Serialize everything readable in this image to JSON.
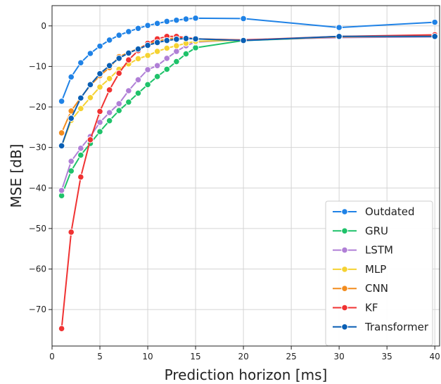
{
  "chart_data": {
    "type": "line",
    "title": "",
    "xlabel": "Prediction horizon [ms]",
    "ylabel": "MSE [dB]",
    "xlim": [
      0,
      40.5
    ],
    "ylim": [
      -79,
      5
    ],
    "xticks": [
      0,
      5,
      10,
      15,
      20,
      25,
      30,
      35,
      40
    ],
    "yticks": [
      0,
      -10,
      -20,
      -30,
      -40,
      -50,
      -60,
      -70
    ],
    "grid": true,
    "legend_position": "lower-right",
    "series": [
      {
        "name": "Outdated",
        "color": "#1f82e6",
        "x": [
          1,
          2,
          3,
          4,
          5,
          6,
          7,
          8,
          9,
          10,
          11,
          12,
          13,
          14,
          15,
          20,
          30,
          40
        ],
        "y": [
          -18.6,
          -12.6,
          -9.1,
          -6.8,
          -5.0,
          -3.5,
          -2.3,
          -1.4,
          -0.6,
          0.1,
          0.6,
          1.1,
          1.4,
          1.7,
          1.9,
          1.8,
          -0.4,
          0.9
        ]
      },
      {
        "name": "GRU",
        "color": "#1fc26a",
        "x": [
          1,
          2,
          3,
          4,
          5,
          6,
          7,
          8,
          9,
          10,
          11,
          12,
          13,
          14,
          15,
          20,
          30,
          40
        ],
        "y": [
          -41.9,
          -35.8,
          -31.9,
          -29.0,
          -26.1,
          -23.4,
          -20.9,
          -18.8,
          -16.6,
          -14.5,
          -12.5,
          -10.7,
          -8.8,
          -6.9,
          -5.4,
          -3.6,
          -2.8,
          -2.5
        ]
      },
      {
        "name": "LSTM",
        "color": "#b07fd6",
        "x": [
          1,
          2,
          3,
          4,
          5,
          6,
          7,
          8,
          9,
          10,
          11,
          12,
          13,
          14,
          15,
          20,
          30,
          40
        ],
        "y": [
          -40.6,
          -33.4,
          -30.2,
          -27.3,
          -23.8,
          -21.4,
          -19.2,
          -16.0,
          -13.3,
          -10.8,
          -9.8,
          -8.0,
          -6.3,
          -4.9,
          -4.0,
          -3.4,
          -2.9,
          -2.7
        ]
      },
      {
        "name": "MLP",
        "color": "#f5d232",
        "x": [
          1,
          2,
          3,
          4,
          5,
          6,
          7,
          8,
          9,
          10,
          11,
          12,
          13,
          14,
          15,
          20,
          30,
          40
        ],
        "y": [
          -29.7,
          -23.3,
          -20.4,
          -17.7,
          -15.1,
          -13.0,
          -10.7,
          -9.4,
          -8.1,
          -7.3,
          -6.3,
          -5.5,
          -4.9,
          -4.3,
          -3.8,
          -3.5,
          -2.7,
          -2.6
        ]
      },
      {
        "name": "CNN",
        "color": "#f28c1e",
        "x": [
          1,
          2,
          3,
          4,
          5,
          6,
          7,
          8,
          9,
          10,
          11,
          12,
          13,
          14,
          15,
          20,
          30,
          40
        ],
        "y": [
          -26.4,
          -21.0,
          -17.7,
          -14.7,
          -12.3,
          -10.3,
          -7.6,
          -6.6,
          -5.6,
          -4.5,
          -3.8,
          -3.2,
          -3.0,
          -3.0,
          -3.2,
          -3.5,
          -2.7,
          -2.3
        ]
      },
      {
        "name": "KF",
        "color": "#f03232",
        "x": [
          1,
          2,
          3,
          4,
          5,
          6,
          7,
          8,
          9,
          10,
          11,
          12,
          13,
          14,
          15,
          20,
          30,
          40
        ],
        "y": [
          -74.7,
          -50.9,
          -37.3,
          -28.1,
          -21.1,
          -15.8,
          -11.7,
          -8.4,
          -6.1,
          -4.3,
          -3.2,
          -2.6,
          -2.6,
          -2.9,
          -3.2,
          -3.5,
          -2.6,
          -2.2
        ]
      },
      {
        "name": "Transformer",
        "color": "#0a5fb4",
        "x": [
          1,
          2,
          3,
          4,
          5,
          6,
          7,
          8,
          9,
          10,
          11,
          12,
          13,
          14,
          15,
          20,
          30,
          40
        ],
        "y": [
          -29.6,
          -22.8,
          -17.8,
          -14.5,
          -11.8,
          -9.8,
          -8.0,
          -6.7,
          -5.7,
          -4.8,
          -4.1,
          -3.6,
          -3.3,
          -3.1,
          -3.2,
          -3.6,
          -2.6,
          -2.6
        ]
      }
    ]
  }
}
